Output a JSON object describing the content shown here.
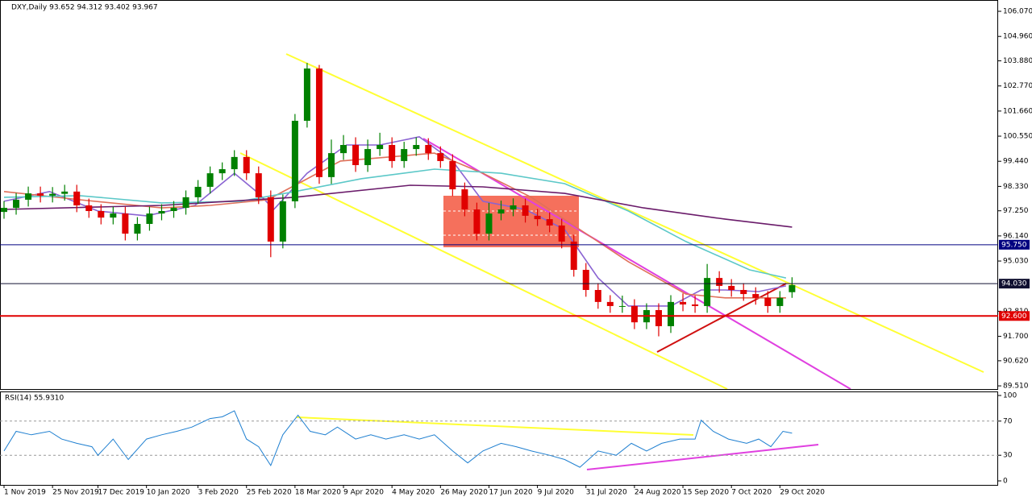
{
  "chart_data": [
    {
      "type": "candlestick",
      "title": "DXY,Daily 93.652 94.312 93.402 93.967",
      "x": [
        0,
        4,
        8,
        12,
        16,
        20,
        24,
        28,
        32,
        36,
        40,
        44,
        48,
        52,
        56,
        60,
        64,
        68,
        72,
        76,
        80,
        84,
        88,
        92,
        96,
        100,
        104,
        108,
        112,
        116,
        120,
        124,
        128,
        132,
        136,
        140,
        144,
        148,
        152,
        156,
        160,
        164,
        168,
        172,
        176,
        180,
        184,
        188,
        192,
        196,
        200,
        204,
        208,
        212,
        216,
        220,
        224,
        228,
        232,
        236,
        240,
        244,
        248,
        252,
        256,
        260
      ],
      "open": [
        97.2,
        97.38,
        97.74,
        98.02,
        97.92,
        98.0,
        98.1,
        97.49,
        97.24,
        96.95,
        97.13,
        96.24,
        96.67,
        97.13,
        97.24,
        97.38,
        97.85,
        98.31,
        98.91,
        99.09,
        99.63,
        98.91,
        97.85,
        95.89,
        97.67,
        101.23,
        103.54,
        98.74,
        99.8,
        100.16,
        99.27,
        99.98,
        100.16,
        99.45,
        99.98,
        100.16,
        99.8,
        99.45,
        98.2,
        97.31,
        96.24,
        97.13,
        97.31,
        97.49,
        97.03,
        96.88,
        96.6,
        95.89,
        94.64,
        93.75,
        93.22,
        93.04,
        93.04,
        92.32,
        92.86,
        92.15,
        93.22,
        93.11,
        93.04,
        94.28,
        93.93,
        93.75,
        93.57,
        93.4,
        93.04,
        93.652
      ],
      "high": [
        97.68,
        98.04,
        98.32,
        98.32,
        98.3,
        98.4,
        98.4,
        97.79,
        97.54,
        97.43,
        97.43,
        96.97,
        97.43,
        97.54,
        97.68,
        98.15,
        98.61,
        99.21,
        99.39,
        99.93,
        99.93,
        99.21,
        98.15,
        97.97,
        101.53,
        103.79,
        103.7,
        100.4,
        100.6,
        100.5,
        100.4,
        100.7,
        100.5,
        100.3,
        100.5,
        100.46,
        100.1,
        99.75,
        98.5,
        97.61,
        97.6,
        97.7,
        97.8,
        97.79,
        97.33,
        97.18,
        96.9,
        96.19,
        94.94,
        94.05,
        93.52,
        93.5,
        93.34,
        93.16,
        93.16,
        93.52,
        93.6,
        93.5,
        94.9,
        94.58,
        94.23,
        94.05,
        93.87,
        93.7,
        93.7,
        94.312
      ],
      "low": [
        96.9,
        97.08,
        97.44,
        97.62,
        97.62,
        97.7,
        97.19,
        96.94,
        96.65,
        96.65,
        95.94,
        95.94,
        96.37,
        96.83,
        96.94,
        97.08,
        97.55,
        98.01,
        98.61,
        98.79,
        98.61,
        97.55,
        95.2,
        95.59,
        97.37,
        100.93,
        98.44,
        98.44,
        99.5,
        98.97,
        98.97,
        99.68,
        99.15,
        99.15,
        99.68,
        99.5,
        99.15,
        97.9,
        97.01,
        95.94,
        95.94,
        96.83,
        97.01,
        96.73,
        96.58,
        96.3,
        95.59,
        94.34,
        93.45,
        92.92,
        92.74,
        92.74,
        92.02,
        92.02,
        91.7,
        91.85,
        92.81,
        92.74,
        92.74,
        93.63,
        93.45,
        93.27,
        93.1,
        92.74,
        92.74,
        93.402
      ],
      "close": [
        97.38,
        97.74,
        98.02,
        97.92,
        98.0,
        98.1,
        97.49,
        97.24,
        96.95,
        97.13,
        96.24,
        96.67,
        97.13,
        97.24,
        97.38,
        97.85,
        98.31,
        98.91,
        99.09,
        99.63,
        98.91,
        97.85,
        95.89,
        97.67,
        101.23,
        103.54,
        98.74,
        99.8,
        100.16,
        99.27,
        99.98,
        100.16,
        99.45,
        99.98,
        100.16,
        99.8,
        99.45,
        98.2,
        97.31,
        96.24,
        97.13,
        97.31,
        97.49,
        97.03,
        96.88,
        96.6,
        95.89,
        94.64,
        93.75,
        93.22,
        93.04,
        93.04,
        92.32,
        92.86,
        92.15,
        93.22,
        93.11,
        93.04,
        94.28,
        93.93,
        93.75,
        93.57,
        93.4,
        93.04,
        93.4,
        93.967
      ],
      "up_color": "#008000",
      "down_color": "#e00000",
      "series": [
        {
          "color": "#8a63d2",
          "x": [
            0,
            15,
            31,
            47,
            63,
            76,
            84,
            89,
            100,
            113,
            124,
            137,
            148,
            158,
            172,
            185,
            196,
            206,
            220,
            230,
            238,
            249,
            258
          ],
          "values": [
            97.67,
            98.1,
            97.24,
            97.03,
            97.49,
            98.91,
            98.02,
            97.31,
            98.91,
            100.16,
            100.16,
            100.52,
            99.45,
            97.67,
            97.31,
            96.42,
            94.28,
            93.04,
            93.04,
            93.75,
            93.75,
            93.68,
            93.93
          ]
        },
        {
          "color": "#e0705a",
          "x": [
            0,
            25,
            52,
            68,
            87,
            96,
            111,
            127,
            142,
            158,
            174,
            190,
            206,
            225,
            238,
            258
          ],
          "values": [
            98.1,
            97.74,
            97.38,
            97.49,
            97.74,
            98.38,
            99.45,
            99.63,
            99.8,
            98.91,
            97.85,
            96.42,
            95.0,
            93.57,
            93.4,
            93.4
          ]
        },
        {
          "color": "#5cc8c8",
          "x": [
            0,
            25,
            52,
            78,
            96,
            118,
            142,
            164,
            185,
            206,
            225,
            246,
            258
          ],
          "values": [
            97.85,
            97.92,
            97.6,
            97.67,
            98.1,
            98.67,
            99.09,
            98.91,
            98.45,
            97.24,
            95.89,
            94.64,
            94.28
          ]
        },
        {
          "color": "#6a1b6a",
          "x": [
            0,
            52,
            96,
            134,
            158,
            185,
            211,
            238,
            260
          ],
          "values": [
            97.31,
            97.49,
            97.85,
            98.38,
            98.31,
            98.02,
            97.38,
            96.88,
            96.53
          ]
        }
      ],
      "levels": [
        {
          "value": 95.75,
          "label": "95.750",
          "color": "#000080"
        },
        {
          "value": 94.03,
          "label": "94.030",
          "color": "#101030"
        },
        {
          "value": 92.6,
          "label": "92.600",
          "color": "#e00000"
        }
      ],
      "xlim": [
        -1.33,
        328
      ],
      "ylim": [
        89.37,
        106.57
      ],
      "yticks": [
        {
          "value": 106.07,
          "label": "106.070"
        },
        {
          "value": 104.96,
          "label": "104.960"
        },
        {
          "value": 103.88,
          "label": "103.880"
        },
        {
          "value": 102.77,
          "label": "102.770"
        },
        {
          "value": 101.66,
          "label": "101.660"
        },
        {
          "value": 100.55,
          "label": "100.550"
        },
        {
          "value": 99.44,
          "label": "99.440"
        },
        {
          "value": 98.33,
          "label": "98.330"
        },
        {
          "value": 97.25,
          "label": "97.250"
        },
        {
          "value": 96.14,
          "label": "96.140"
        },
        {
          "value": 95.03,
          "label": "95.030"
        },
        {
          "value": 92.81,
          "label": "92.810"
        },
        {
          "value": 91.7,
          "label": "91.700"
        },
        {
          "value": 90.62,
          "label": "90.620"
        },
        {
          "value": 89.51,
          "label": "89.510"
        }
      ]
    },
    {
      "type": "line",
      "title": "RSI(14) 55.9310",
      "color": "#1e7fd0",
      "x": [
        0,
        4,
        9,
        15,
        19,
        24,
        29,
        31,
        36,
        41,
        47,
        52,
        57,
        62,
        68,
        72,
        76,
        80,
        84,
        88,
        92,
        97,
        101,
        106,
        110,
        116,
        121,
        126,
        132,
        137,
        142,
        148,
        153,
        158,
        164,
        169,
        174,
        180,
        185,
        190,
        196,
        202,
        207,
        212,
        217,
        223,
        228,
        230,
        234,
        239,
        245,
        249,
        253,
        257,
        260
      ],
      "values": [
        35,
        58,
        54,
        58,
        49,
        44,
        40,
        30,
        49,
        25,
        49,
        54,
        58,
        63,
        73,
        75,
        82,
        49,
        40,
        18,
        54,
        77,
        58,
        54,
        63,
        49,
        54,
        49,
        54,
        49,
        54,
        35,
        21,
        35,
        44,
        40,
        35,
        30,
        25,
        16,
        35,
        30,
        44,
        35,
        44,
        49,
        49,
        71,
        58,
        49,
        44,
        49,
        40,
        58,
        55.93
      ],
      "levels": [
        70,
        30
      ],
      "xlim": [
        -1.33,
        328
      ],
      "ylim": [
        -4.7,
        104.7
      ],
      "yticks": [
        100,
        70,
        30,
        0
      ],
      "xticks": [
        {
          "value": 0,
          "label": "1 Nov 2019"
        },
        {
          "value": 16,
          "label": "25 Nov 2019"
        },
        {
          "value": 31,
          "label": "17 Dec 2019"
        },
        {
          "value": 47,
          "label": "10 Jan 2020"
        },
        {
          "value": 64,
          "label": "3 Feb 2020"
        },
        {
          "value": 80,
          "label": "25 Feb 2020"
        },
        {
          "value": 96,
          "label": "18 Mar 2020"
        },
        {
          "value": 112,
          "label": "9 Apr 2020"
        },
        {
          "value": 128,
          "label": "4 May 2020"
        },
        {
          "value": 144,
          "label": "26 May 2020"
        },
        {
          "value": 160,
          "label": "17 Jun 2020"
        },
        {
          "value": 176,
          "label": "9 Jul 2020"
        },
        {
          "value": 192,
          "label": "31 Jul 2020"
        },
        {
          "value": 208,
          "label": "24 Aug 2020"
        },
        {
          "value": 224,
          "label": "15 Sep 2020"
        },
        {
          "value": 240,
          "label": "7 Oct 2020"
        },
        {
          "value": 256,
          "label": "29 Oct 2020"
        }
      ]
    }
  ]
}
